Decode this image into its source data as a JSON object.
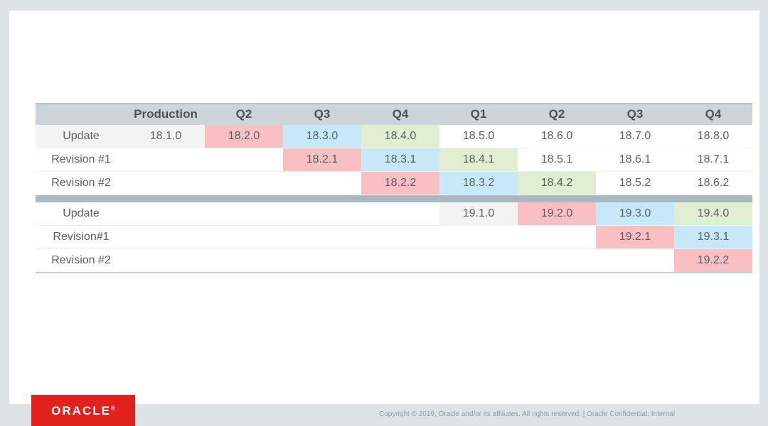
{
  "table": {
    "columns": [
      "",
      "Production",
      "Q2",
      "Q3",
      "Q4",
      "Q1",
      "Q2",
      "Q3",
      "Q4"
    ],
    "sections": [
      {
        "rows": [
          {
            "label": "Update",
            "label_fill": "gray",
            "cells": [
              {
                "text": "18.1.0",
                "fill": "gray"
              },
              {
                "text": "18.2.0",
                "fill": "pink"
              },
              {
                "text": "18.3.0",
                "fill": "blue"
              },
              {
                "text": "18.4.0",
                "fill": "green"
              },
              {
                "text": "18.5.0",
                "fill": "none"
              },
              {
                "text": "18.6.0",
                "fill": "none"
              },
              {
                "text": "18.7.0",
                "fill": "none"
              },
              {
                "text": "18.8.0",
                "fill": "none"
              }
            ]
          },
          {
            "label": "Revision #1",
            "label_fill": "none",
            "cells": [
              null,
              null,
              {
                "text": "18.2.1",
                "fill": "pink"
              },
              {
                "text": "18.3.1",
                "fill": "blue"
              },
              {
                "text": "18.4.1",
                "fill": "green"
              },
              {
                "text": "18.5.1",
                "fill": "none"
              },
              {
                "text": "18.6.1",
                "fill": "none"
              },
              {
                "text": "18.7.1",
                "fill": "none"
              }
            ]
          },
          {
            "label": "Revision #2",
            "label_fill": "none",
            "cells": [
              null,
              null,
              null,
              {
                "text": "18.2.2",
                "fill": "pink"
              },
              {
                "text": "18.3.2",
                "fill": "blue"
              },
              {
                "text": "18.4.2",
                "fill": "green"
              },
              {
                "text": "18.5.2",
                "fill": "none"
              },
              {
                "text": "18.6.2",
                "fill": "none"
              }
            ]
          }
        ]
      },
      {
        "rows": [
          {
            "label": "Update",
            "label_fill": "none",
            "cells": [
              null,
              null,
              null,
              null,
              {
                "text": "19.1.0",
                "fill": "gray"
              },
              {
                "text": "19.2.0",
                "fill": "pink"
              },
              {
                "text": "19.3.0",
                "fill": "blue"
              },
              {
                "text": "19.4.0",
                "fill": "green"
              }
            ]
          },
          {
            "label": "Revision#1",
            "label_fill": "none",
            "cells": [
              null,
              null,
              null,
              null,
              null,
              null,
              {
                "text": "19.2.1",
                "fill": "pink"
              },
              {
                "text": "19.3.1",
                "fill": "blue"
              }
            ]
          },
          {
            "label": "Revision #2",
            "label_fill": "none",
            "cells": [
              null,
              null,
              null,
              null,
              null,
              null,
              null,
              {
                "text": "19.2.2",
                "fill": "pink"
              }
            ]
          }
        ]
      }
    ]
  },
  "colors": {
    "pink": "#f9bfc2",
    "blue": "#c7e8f6",
    "green": "#e1eed1",
    "gray": "#f2f3f3",
    "none": "transparent",
    "header_bg": "#ccd4d7",
    "header_text": "#4c5255",
    "cell_text": "#5b5f62",
    "separator": "#aab9c1",
    "frame": "#dee4e6",
    "logo_red": "#e0211c"
  },
  "footer": {
    "copyright": "Copyright © 2019, Oracle and/or its affiliates. All rights reserved.  |  Oracle Confidential: Internal",
    "logo_text": "ORACLE",
    "logo_reg": "®"
  }
}
